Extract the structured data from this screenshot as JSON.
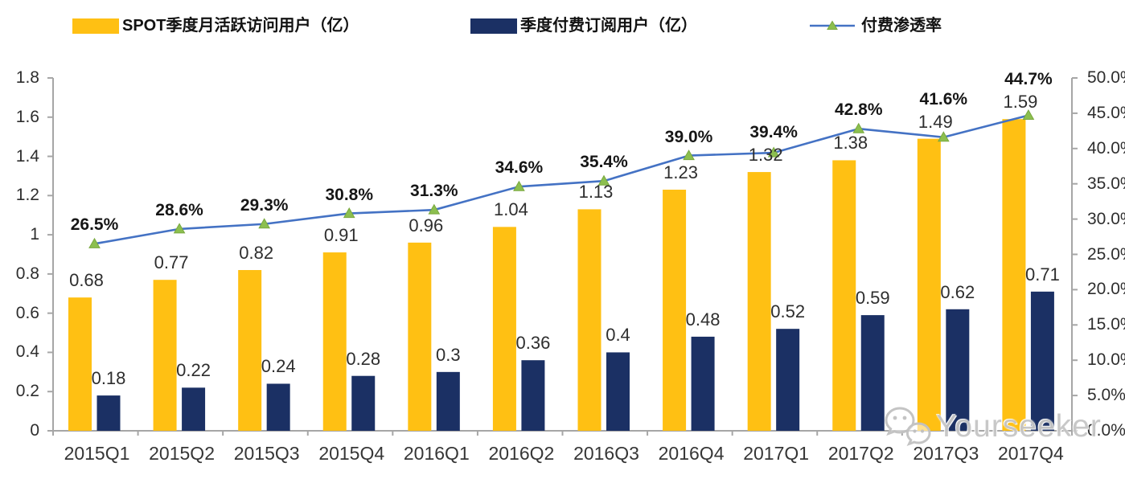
{
  "legend": {
    "items": [
      {
        "label": "SPOT季度月活跃访问用户（亿）",
        "swatch": "bar",
        "color": "#FFC013"
      },
      {
        "label": "季度付费订阅用户（亿）",
        "swatch": "bar",
        "color": "#1B3064"
      },
      {
        "label": "付费渗透率",
        "swatch": "line",
        "color": "#4472C4",
        "marker_color": "#8CBF4F"
      }
    ]
  },
  "watermark": {
    "text": "Yourseeker",
    "icon": "wechat-icon"
  },
  "chart_data": {
    "type": "bar",
    "combo": "bar+line",
    "title": "",
    "categories": [
      "2015Q1",
      "2015Q2",
      "2015Q3",
      "2015Q4",
      "2016Q1",
      "2016Q2",
      "2016Q3",
      "2016Q4",
      "2017Q1",
      "2017Q2",
      "2017Q3",
      "2017Q4"
    ],
    "series": [
      {
        "name": "SPOT季度月活跃访问用户（亿）",
        "type": "bar",
        "axis": "left",
        "color": "#FFC013",
        "values": [
          0.68,
          0.77,
          0.82,
          0.91,
          0.96,
          1.04,
          1.13,
          1.23,
          1.32,
          1.38,
          1.49,
          1.59
        ],
        "labels": [
          "0.68",
          "0.77",
          "0.82",
          "0.91",
          "0.96",
          "1.04",
          "1.13",
          "1.23",
          "1.32",
          "1.38",
          "1.49",
          "1.59"
        ]
      },
      {
        "name": "季度付费订阅用户（亿）",
        "type": "bar",
        "axis": "left",
        "color": "#1B3064",
        "values": [
          0.18,
          0.22,
          0.24,
          0.28,
          0.3,
          0.36,
          0.4,
          0.48,
          0.52,
          0.59,
          0.62,
          0.71
        ],
        "labels": [
          "0.18",
          "0.22",
          "0.24",
          "0.28",
          "0.3",
          "0.36",
          "0.4",
          "0.48",
          "0.52",
          "0.59",
          "0.62",
          "0.71"
        ]
      },
      {
        "name": "付费渗透率",
        "type": "line",
        "axis": "right",
        "color": "#4472C4",
        "marker": "triangle",
        "marker_color": "#8CBF4F",
        "values": [
          26.5,
          28.6,
          29.3,
          30.8,
          31.3,
          34.6,
          35.4,
          39.0,
          39.4,
          42.8,
          41.6,
          44.7
        ],
        "labels": [
          "26.5%",
          "28.6%",
          "29.3%",
          "30.8%",
          "31.3%",
          "34.6%",
          "35.4%",
          "39.0%",
          "39.4%",
          "42.8%",
          "41.6%",
          "44.7%"
        ]
      }
    ],
    "left_axis": {
      "min": 0,
      "max": 1.8,
      "tick_labels": [
        "0",
        "0.2",
        "0.4",
        "0.6",
        "0.8",
        "1",
        "1.2",
        "1.4",
        "1.6",
        "1.8"
      ]
    },
    "right_axis": {
      "min": 0,
      "max": 50,
      "tick_labels": [
        "0.0%",
        "5.0%",
        "10.0%",
        "15.0%",
        "20.0%",
        "25.0%",
        "30.0%",
        "35.0%",
        "40.0%",
        "45.0%",
        "50.0%"
      ]
    },
    "grid": false,
    "legend_position": "top",
    "axis_color": "#A6A6A6"
  }
}
